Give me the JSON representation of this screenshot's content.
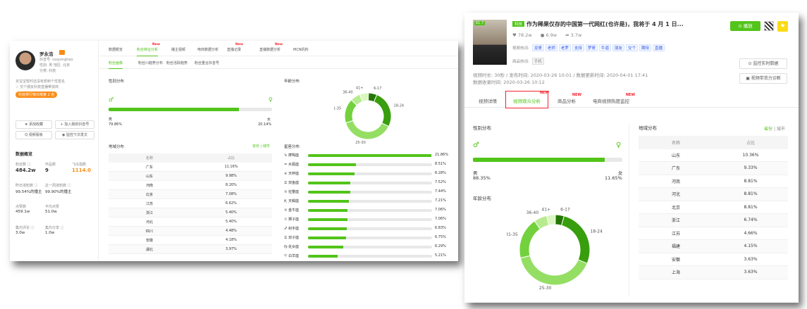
{
  "left": {
    "profile": {
      "name": "罗永浩",
      "id": "抖音号: luoyonghao",
      "meta": "性别: 男   地区: 北京",
      "meta2": "分类: 科技",
      "bio": "本宝宝暂时还没有想到个性签名",
      "bio2": "☆ 交个朋友科技直播带货商",
      "rank": "科技排行榜日榜第 2 名"
    },
    "actions": {
      "collect": "★ 添加收藏",
      "add": "+ 加入我的抖音号",
      "view": "Q 视频看板",
      "monitor": "◉ 监控下次发文"
    },
    "stats_title": "数据概览",
    "stats": [
      {
        "label": "粉丝数 ⓘ",
        "value": "484.2w"
      },
      {
        "label": "作品数",
        "value": "9"
      },
      {
        "label": "飞瓜指数",
        "value": "1114.0"
      },
      {
        "label": "昨日涨粉数 ⓘ",
        "value": "99.54%的播主"
      },
      {
        "label": "近一周涨粉数 ⓘ",
        "value": "99.90%的播主"
      },
      {
        "label": "点赞数",
        "value": "459.1w"
      },
      {
        "label": "平均点赞",
        "value": "51.0w"
      },
      {
        "label": "集均评论 ⓘ",
        "value": "3.0w"
      },
      {
        "label": "集均分享 ⓘ",
        "value": "1.0w"
      }
    ],
    "tabs": [
      {
        "label": "数据概览",
        "new": ""
      },
      {
        "label": "粉丝特征分析",
        "new": "New"
      },
      {
        "label": "播主视频",
        "new": ""
      },
      {
        "label": "电商数据分析",
        "new": ""
      },
      {
        "label": "直播记录",
        "new": "New"
      },
      {
        "label": "直播数据分析",
        "new": "New"
      },
      {
        "label": "MCN机构",
        "new": ""
      }
    ],
    "subtabs": [
      "粉丝画像",
      "粉丝川趋势分布",
      "粉丝活跃趋势",
      "粉丝重合抖音号"
    ],
    "gender": {
      "title": "性别分布",
      "male_label": "男",
      "male_value": "79.86%",
      "female_label": "女",
      "female_value": "20.14%",
      "male_pct": 79.86
    },
    "age": {
      "title": "年龄分布",
      "labels": [
        "6-17",
        "18-24",
        "25-30",
        "31-35",
        "36-40",
        "41+"
      ],
      "values": [
        6,
        26,
        38,
        17,
        7,
        6
      ]
    },
    "region": {
      "title": "地域分布",
      "toggle": "省份 | 城市",
      "headers": [
        "名称",
        "占比"
      ],
      "rows": [
        [
          "广东",
          "11.16%"
        ],
        [
          "山东",
          "9.98%"
        ],
        [
          "河南",
          "8.20%"
        ],
        [
          "北京",
          "7.08%"
        ],
        [
          "江苏",
          "6.62%"
        ],
        [
          "浙江",
          "5.40%"
        ],
        [
          "河北",
          "5.40%"
        ],
        [
          "四川",
          "4.48%"
        ],
        [
          "安徽",
          "4.18%"
        ],
        [
          "湖北",
          "3.97%"
        ]
      ]
    },
    "star": {
      "title": "星座分布",
      "rows": [
        [
          "♑ 摩羯座",
          "21.86%",
          21.86
        ],
        [
          "♒ 水瓶座",
          "8.51%",
          8.51
        ],
        [
          "♓ 天秤座",
          "8.28%",
          8.28
        ],
        [
          "♊ 双鱼座",
          "7.52%",
          7.52
        ],
        [
          "♉ 狂蟹座",
          "7.44%",
          7.44
        ],
        [
          "♏ 天蝎座",
          "7.21%",
          7.21
        ],
        [
          "♉ 金牛座",
          "7.06%",
          7.06
        ],
        [
          "♌ 狮子座",
          "7.06%",
          7.06
        ],
        [
          "♐ 射手座",
          "6.83%",
          6.83
        ],
        [
          "♊ 双子座",
          "6.75%",
          6.75
        ],
        [
          "♍ 处女座",
          "6.29%",
          6.29
        ],
        [
          "♈ 白羊座",
          "5.21%",
          5.21
        ]
      ]
    }
  },
  "right": {
    "score": "61.7",
    "cat": "科技",
    "title": "作为稀果仅存的中国第一代网红(也许是)，我将于 4 月 1 日...",
    "likes": "78.2w",
    "comments": "6.9w",
    "shares": "3.7w",
    "hot_label": "视频热词:",
    "hot_words": [
      "龙哥",
      "老师",
      "老罗",
      "支持",
      "罗哥",
      "牛逼",
      "朋友",
      "交个",
      "期待",
      "直播"
    ],
    "goods_label": "商品热词:",
    "goods_words": [
      "手机"
    ],
    "meta1": "视频时长: 30秒 / 发布时间: 2020-03-26 10:01 / 数据更新时间: 2020-04-01 17:41",
    "meta2": "数据收录时间: 2020-03-26 10:12",
    "play": "⊙ 播放",
    "monitor": "⊙ 监控实时数据",
    "diag": "▣ 视频带货力诊断",
    "tabs": [
      {
        "label": "视频详情",
        "new": ""
      },
      {
        "label": "视频观众分析",
        "new": "NEW"
      },
      {
        "label": "商品分析",
        "new": "NEW"
      },
      {
        "label": "电商视频热度监控",
        "new": "NEW"
      }
    ],
    "gender": {
      "title": "性别分布",
      "male_label": "男",
      "male_value": "88.35%",
      "female_label": "女",
      "female_value": "11.65%",
      "male_pct": 88.35
    },
    "age": {
      "title": "年龄分布",
      "labels": [
        "6-17",
        "18-24",
        "25-30",
        "31-35",
        "36-40",
        "41+"
      ],
      "values": [
        4,
        27,
        40,
        19,
        6,
        4
      ]
    },
    "region": {
      "title": "地域分布",
      "toggle_a": "省份",
      "toggle_b": "| 城市",
      "headers": [
        "名称",
        "占比"
      ],
      "rows": [
        [
          "山东",
          "10.36%"
        ],
        [
          "广东",
          "9.33%"
        ],
        [
          "河南",
          "8.81%"
        ],
        [
          "河北",
          "8.81%"
        ],
        [
          "北京",
          "8.81%"
        ],
        [
          "浙江",
          "6.74%"
        ],
        [
          "江苏",
          "4.66%"
        ],
        [
          "福建",
          "4.15%"
        ],
        [
          "安徽",
          "3.63%"
        ],
        [
          "上海",
          "3.63%"
        ]
      ]
    }
  },
  "colors": {
    "accent": "#52c41a",
    "red": "#f5222d",
    "orange": "#fa8c16"
  }
}
